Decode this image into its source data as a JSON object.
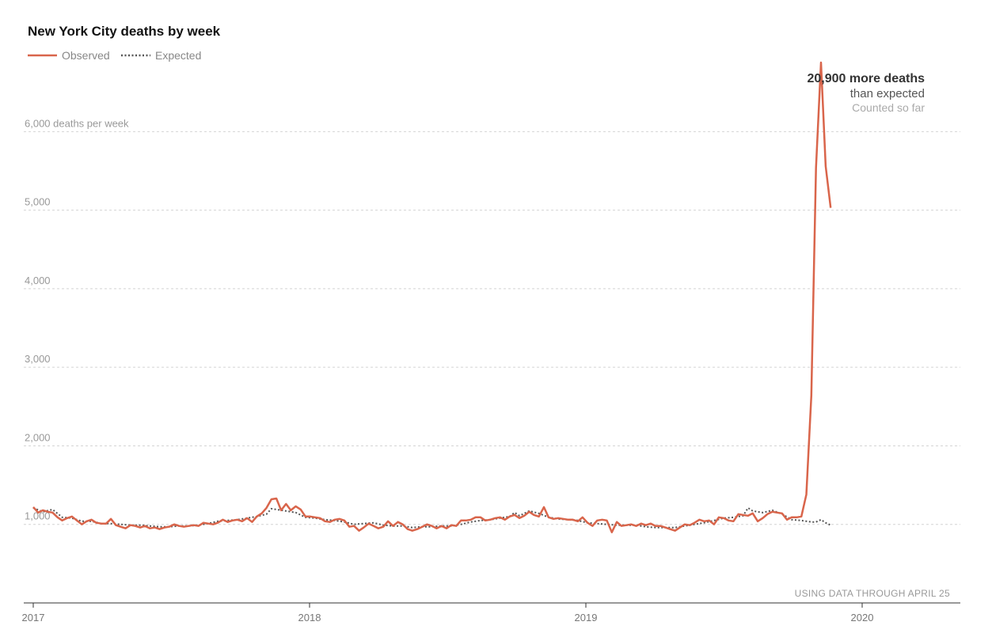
{
  "chart_data": {
    "type": "line",
    "title": "New York City deaths by week",
    "ylabel_unit": "deaths per week",
    "ylim": [
      0,
      6900
    ],
    "yticks": [
      {
        "value": 1000,
        "label": "1,000"
      },
      {
        "value": 2000,
        "label": "2,000"
      },
      {
        "value": 3000,
        "label": "3,000"
      },
      {
        "value": 4000,
        "label": "4,000"
      },
      {
        "value": 5000,
        "label": "5,000"
      },
      {
        "value": 6000,
        "label": "6,000"
      }
    ],
    "xticks": [
      {
        "value": 2017,
        "label": "2017"
      },
      {
        "value": 2018,
        "label": "2018"
      },
      {
        "value": 2019,
        "label": "2019"
      },
      {
        "value": 2020,
        "label": "2020"
      }
    ],
    "xlim": [
      2017,
      2020.35
    ],
    "grid": true,
    "legend_position": "top-left",
    "colors": {
      "observed": "#d9654b",
      "expected": "#555555"
    },
    "series": [
      {
        "name": "Observed",
        "style": "solid",
        "points": [
          [
            2017.0,
            1220
          ],
          [
            2017.018,
            1150
          ],
          [
            2017.035,
            1180
          ],
          [
            2017.053,
            1160
          ],
          [
            2017.07,
            1150
          ],
          [
            2017.088,
            1090
          ],
          [
            2017.105,
            1050
          ],
          [
            2017.123,
            1080
          ],
          [
            2017.14,
            1100
          ],
          [
            2017.158,
            1050
          ],
          [
            2017.176,
            1000
          ],
          [
            2017.193,
            1040
          ],
          [
            2017.211,
            1060
          ],
          [
            2017.228,
            1020
          ],
          [
            2017.246,
            1010
          ],
          [
            2017.264,
            1010
          ],
          [
            2017.281,
            1070
          ],
          [
            2017.299,
            990
          ],
          [
            2017.316,
            970
          ],
          [
            2017.334,
            950
          ],
          [
            2017.352,
            990
          ],
          [
            2017.369,
            980
          ],
          [
            2017.387,
            960
          ],
          [
            2017.404,
            980
          ],
          [
            2017.422,
            950
          ],
          [
            2017.44,
            960
          ],
          [
            2017.457,
            940
          ],
          [
            2017.475,
            960
          ],
          [
            2017.492,
            970
          ],
          [
            2017.51,
            1000
          ],
          [
            2017.528,
            980
          ],
          [
            2017.545,
            970
          ],
          [
            2017.563,
            980
          ],
          [
            2017.58,
            990
          ],
          [
            2017.598,
            980
          ],
          [
            2017.616,
            1020
          ],
          [
            2017.633,
            1010
          ],
          [
            2017.651,
            1000
          ],
          [
            2017.668,
            1020
          ],
          [
            2017.686,
            1060
          ],
          [
            2017.704,
            1030
          ],
          [
            2017.721,
            1050
          ],
          [
            2017.739,
            1060
          ],
          [
            2017.756,
            1040
          ],
          [
            2017.774,
            1080
          ],
          [
            2017.792,
            1030
          ],
          [
            2017.809,
            1100
          ],
          [
            2017.827,
            1140
          ],
          [
            2017.844,
            1210
          ],
          [
            2017.862,
            1320
          ],
          [
            2017.88,
            1330
          ],
          [
            2017.897,
            1180
          ],
          [
            2017.915,
            1260
          ],
          [
            2017.932,
            1180
          ],
          [
            2017.95,
            1230
          ],
          [
            2017.968,
            1190
          ],
          [
            2017.985,
            1100
          ],
          [
            2018.003,
            1100
          ],
          [
            2018.02,
            1090
          ],
          [
            2018.038,
            1080
          ],
          [
            2018.056,
            1040
          ],
          [
            2018.073,
            1030
          ],
          [
            2018.091,
            1060
          ],
          [
            2018.108,
            1070
          ],
          [
            2018.126,
            1050
          ],
          [
            2018.144,
            970
          ],
          [
            2018.161,
            980
          ],
          [
            2018.179,
            920
          ],
          [
            2018.196,
            960
          ],
          [
            2018.214,
            1010
          ],
          [
            2018.232,
            980
          ],
          [
            2018.249,
            950
          ],
          [
            2018.267,
            970
          ],
          [
            2018.284,
            1040
          ],
          [
            2018.302,
            980
          ],
          [
            2018.32,
            1030
          ],
          [
            2018.337,
            1000
          ],
          [
            2018.355,
            940
          ],
          [
            2018.372,
            920
          ],
          [
            2018.39,
            940
          ],
          [
            2018.408,
            970
          ],
          [
            2018.425,
            1000
          ],
          [
            2018.443,
            980
          ],
          [
            2018.46,
            950
          ],
          [
            2018.478,
            980
          ],
          [
            2018.496,
            950
          ],
          [
            2018.513,
            990
          ],
          [
            2018.531,
            980
          ],
          [
            2018.548,
            1050
          ],
          [
            2018.566,
            1050
          ],
          [
            2018.584,
            1060
          ],
          [
            2018.601,
            1090
          ],
          [
            2018.619,
            1090
          ],
          [
            2018.636,
            1050
          ],
          [
            2018.654,
            1060
          ],
          [
            2018.672,
            1080
          ],
          [
            2018.689,
            1090
          ],
          [
            2018.707,
            1060
          ],
          [
            2018.724,
            1100
          ],
          [
            2018.742,
            1120
          ],
          [
            2018.76,
            1080
          ],
          [
            2018.777,
            1110
          ],
          [
            2018.795,
            1160
          ],
          [
            2018.812,
            1120
          ],
          [
            2018.83,
            1100
          ],
          [
            2018.848,
            1220
          ],
          [
            2018.865,
            1090
          ],
          [
            2018.883,
            1070
          ],
          [
            2018.9,
            1080
          ],
          [
            2018.918,
            1070
          ],
          [
            2018.936,
            1060
          ],
          [
            2018.953,
            1060
          ],
          [
            2018.971,
            1040
          ],
          [
            2018.988,
            1090
          ],
          [
            2019.006,
            1020
          ],
          [
            2019.024,
            980
          ],
          [
            2019.041,
            1050
          ],
          [
            2019.059,
            1060
          ],
          [
            2019.076,
            1050
          ],
          [
            2019.094,
            900
          ],
          [
            2019.112,
            1030
          ],
          [
            2019.129,
            980
          ],
          [
            2019.147,
            990
          ],
          [
            2019.164,
            1000
          ],
          [
            2019.182,
            980
          ],
          [
            2019.2,
            1010
          ],
          [
            2019.217,
            990
          ],
          [
            2019.235,
            1010
          ],
          [
            2019.252,
            980
          ],
          [
            2019.27,
            980
          ],
          [
            2019.288,
            960
          ],
          [
            2019.305,
            940
          ],
          [
            2019.323,
            920
          ],
          [
            2019.34,
            960
          ],
          [
            2019.358,
            1000
          ],
          [
            2019.376,
            990
          ],
          [
            2019.393,
            1020
          ],
          [
            2019.411,
            1060
          ],
          [
            2019.428,
            1040
          ],
          [
            2019.446,
            1050
          ],
          [
            2019.464,
            1000
          ],
          [
            2019.481,
            1090
          ],
          [
            2019.499,
            1080
          ],
          [
            2019.516,
            1050
          ],
          [
            2019.534,
            1040
          ],
          [
            2019.552,
            1130
          ],
          [
            2019.569,
            1120
          ],
          [
            2019.587,
            1110
          ],
          [
            2019.604,
            1140
          ],
          [
            2019.622,
            1040
          ],
          [
            2019.64,
            1080
          ],
          [
            2019.657,
            1130
          ],
          [
            2019.675,
            1160
          ],
          [
            2019.692,
            1150
          ],
          [
            2019.71,
            1140
          ],
          [
            2019.728,
            1060
          ],
          [
            2019.745,
            1090
          ],
          [
            2019.763,
            1090
          ],
          [
            2019.78,
            1100
          ],
          [
            2019.798,
            1380
          ],
          [
            2019.816,
            2640
          ],
          [
            2019.833,
            5540
          ],
          [
            2019.851,
            6880
          ],
          [
            2019.868,
            5560
          ],
          [
            2019.886,
            5030
          ]
        ]
      },
      {
        "name": "Expected",
        "style": "dotted",
        "points": [
          [
            2017.0,
            1210
          ],
          [
            2017.035,
            1160
          ],
          [
            2017.07,
            1190
          ],
          [
            2017.105,
            1090
          ],
          [
            2017.14,
            1080
          ],
          [
            2017.176,
            1040
          ],
          [
            2017.211,
            1040
          ],
          [
            2017.246,
            1010
          ],
          [
            2017.281,
            1010
          ],
          [
            2017.316,
            1000
          ],
          [
            2017.352,
            990
          ],
          [
            2017.387,
            990
          ],
          [
            2017.422,
            980
          ],
          [
            2017.457,
            970
          ],
          [
            2017.492,
            970
          ],
          [
            2017.528,
            980
          ],
          [
            2017.563,
            980
          ],
          [
            2017.598,
            990
          ],
          [
            2017.633,
            1010
          ],
          [
            2017.668,
            1040
          ],
          [
            2017.704,
            1050
          ],
          [
            2017.739,
            1060
          ],
          [
            2017.774,
            1080
          ],
          [
            2017.809,
            1100
          ],
          [
            2017.844,
            1130
          ],
          [
            2017.862,
            1200
          ],
          [
            2017.88,
            1190
          ],
          [
            2017.915,
            1170
          ],
          [
            2017.95,
            1150
          ],
          [
            2017.985,
            1090
          ],
          [
            2018.02,
            1080
          ],
          [
            2018.056,
            1060
          ],
          [
            2018.091,
            1050
          ],
          [
            2018.126,
            1030
          ],
          [
            2018.161,
            1000
          ],
          [
            2018.196,
            1010
          ],
          [
            2018.232,
            1020
          ],
          [
            2018.267,
            990
          ],
          [
            2018.302,
            980
          ],
          [
            2018.337,
            980
          ],
          [
            2018.372,
            960
          ],
          [
            2018.408,
            970
          ],
          [
            2018.443,
            970
          ],
          [
            2018.478,
            980
          ],
          [
            2018.513,
            980
          ],
          [
            2018.548,
            1000
          ],
          [
            2018.584,
            1030
          ],
          [
            2018.619,
            1050
          ],
          [
            2018.654,
            1060
          ],
          [
            2018.689,
            1080
          ],
          [
            2018.724,
            1100
          ],
          [
            2018.742,
            1150
          ],
          [
            2018.76,
            1110
          ],
          [
            2018.795,
            1170
          ],
          [
            2018.83,
            1140
          ],
          [
            2018.865,
            1090
          ],
          [
            2018.9,
            1070
          ],
          [
            2018.936,
            1060
          ],
          [
            2018.971,
            1050
          ],
          [
            2019.006,
            1020
          ],
          [
            2019.041,
            1010
          ],
          [
            2019.076,
            1000
          ],
          [
            2019.112,
            990
          ],
          [
            2019.147,
            990
          ],
          [
            2019.182,
            990
          ],
          [
            2019.217,
            970
          ],
          [
            2019.252,
            960
          ],
          [
            2019.288,
            960
          ],
          [
            2019.323,
            960
          ],
          [
            2019.358,
            980
          ],
          [
            2019.393,
            1000
          ],
          [
            2019.428,
            1020
          ],
          [
            2019.464,
            1050
          ],
          [
            2019.499,
            1080
          ],
          [
            2019.534,
            1090
          ],
          [
            2019.569,
            1110
          ],
          [
            2019.587,
            1210
          ],
          [
            2019.604,
            1170
          ],
          [
            2019.64,
            1150
          ],
          [
            2019.675,
            1180
          ],
          [
            2019.71,
            1130
          ],
          [
            2019.745,
            1060
          ],
          [
            2019.78,
            1050
          ],
          [
            2019.816,
            1030
          ],
          [
            2019.833,
            1030
          ],
          [
            2019.851,
            1060
          ],
          [
            2019.868,
            1020
          ],
          [
            2019.886,
            990
          ]
        ]
      }
    ],
    "annotation": {
      "line1": "20,900 more deaths",
      "line2": "than expected",
      "line3": "Counted so far"
    },
    "note": "USING DATA THROUGH APRIL 25"
  }
}
